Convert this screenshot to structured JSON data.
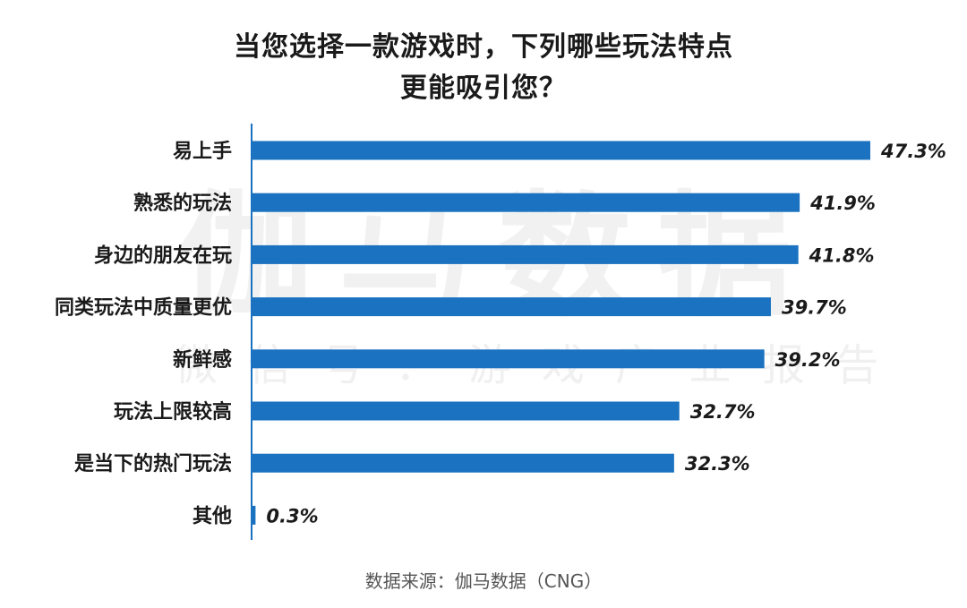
{
  "chart_data": {
    "type": "bar",
    "orientation": "horizontal",
    "title_lines": [
      "当您选择一款游戏时，下列哪些玩法特点",
      "更能吸引您？"
    ],
    "categories": [
      "易上手",
      "熟悉的玩法",
      "身边的朋友在玩",
      "同类玩法中质量更优",
      "新鲜感",
      "玩法上限较高",
      "是当下的热门玩法",
      "其他"
    ],
    "values": [
      47.3,
      41.9,
      41.8,
      39.7,
      39.2,
      32.7,
      32.3,
      0.3
    ],
    "value_labels": [
      "47.3%",
      "41.9%",
      "41.8%",
      "39.7%",
      "39.2%",
      "32.7%",
      "32.3%",
      "0.3%"
    ],
    "bar_color": "#1a72c0",
    "axis_color": "#1a72c0",
    "grid": false,
    "legend": "none"
  },
  "watermark": {
    "main": "伽马数据",
    "sub": "微信号：游戏产业报告"
  },
  "source": "数据来源：伽马数据（CNG）"
}
